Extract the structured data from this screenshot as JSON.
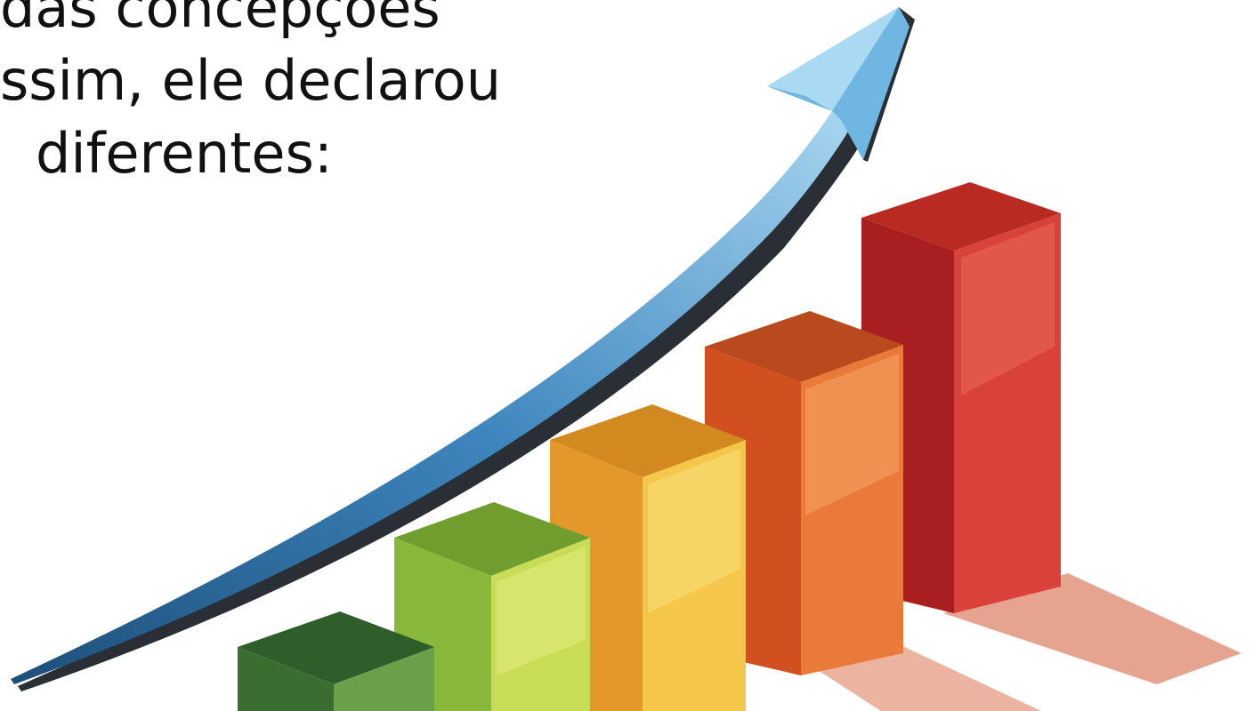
{
  "slide": {
    "lines": [
      "das concepções",
      "ssim, ele declarou",
      "diferentes:"
    ]
  },
  "illustration": {
    "subject": "bar-chart-growth-icon",
    "bar_colors": [
      "#3f7a34",
      "#8cbf3f",
      "#f0b23a",
      "#e0622a",
      "#c9282a"
    ],
    "arrow_color": "#5aa5d6",
    "levels": [
      1,
      2,
      3,
      4,
      5
    ]
  }
}
